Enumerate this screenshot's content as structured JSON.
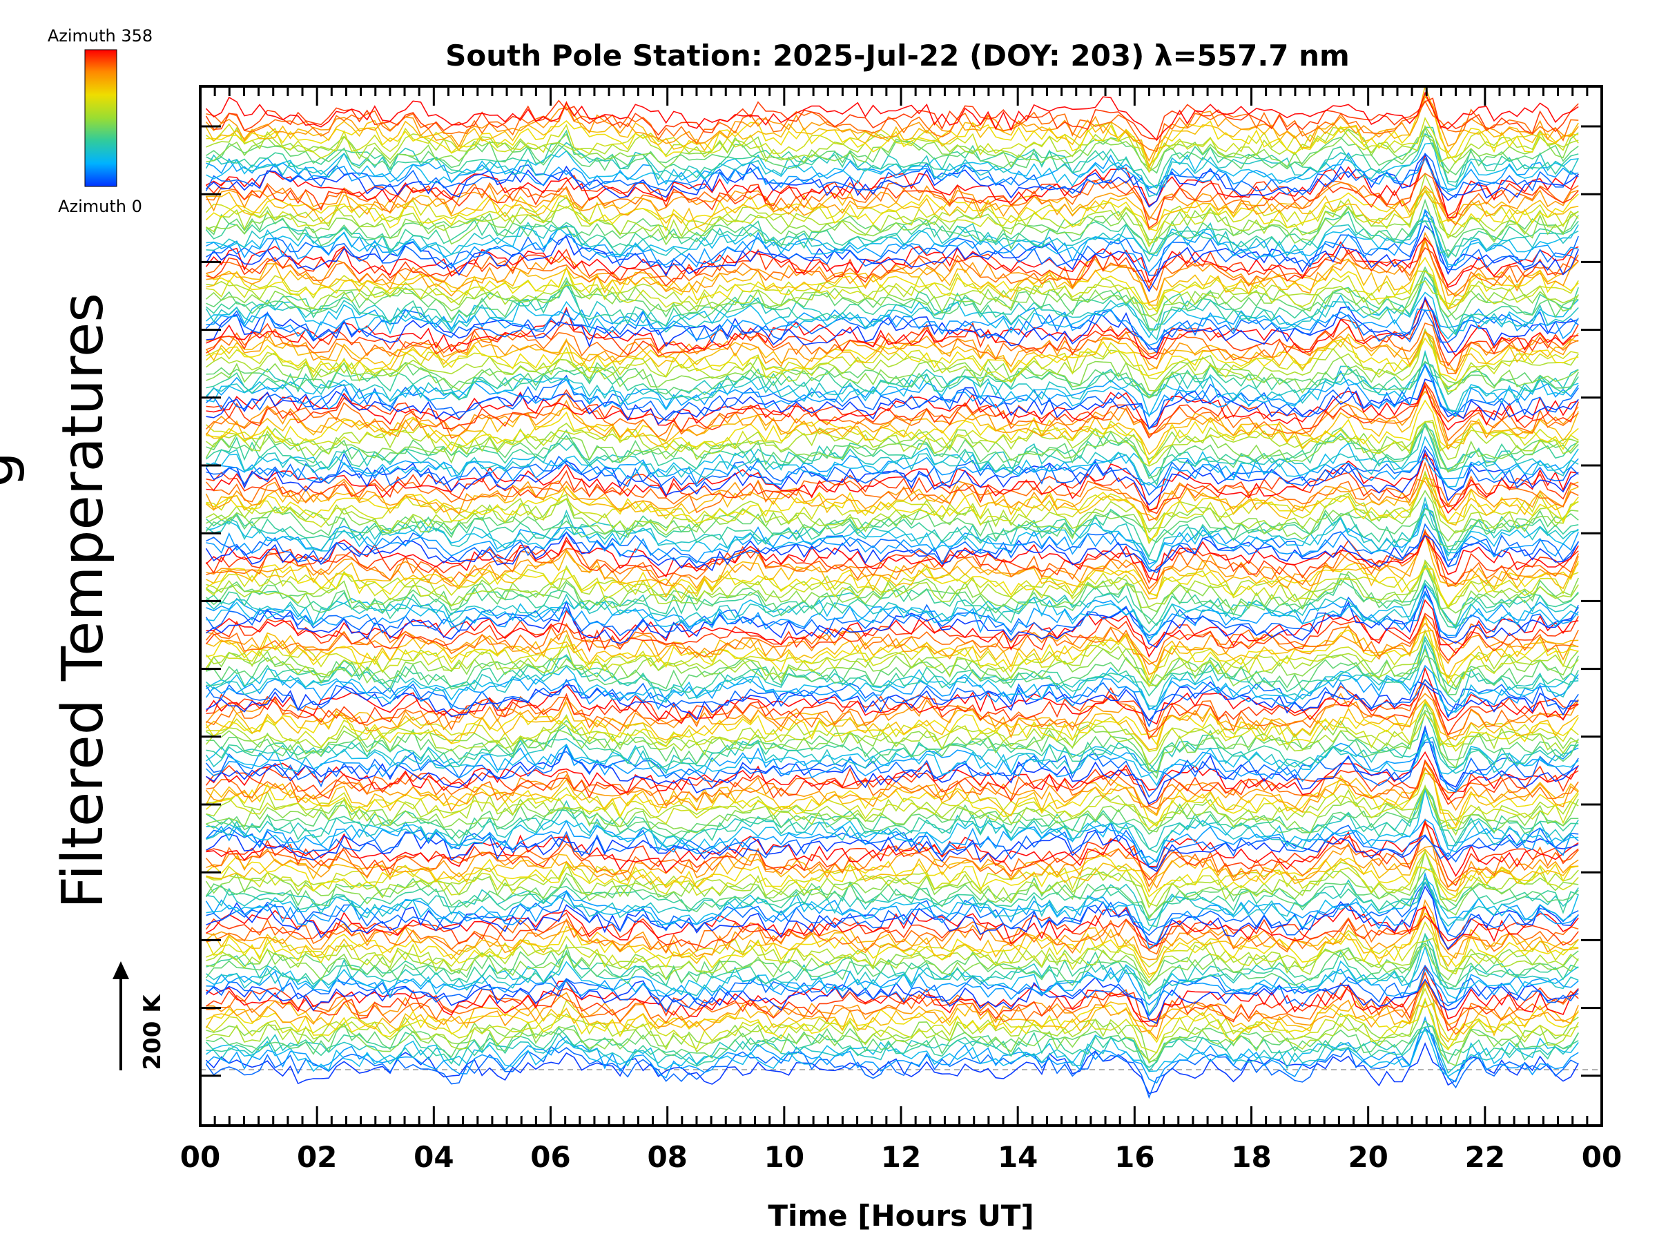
{
  "chart_data": {
    "type": "line",
    "title": "South Pole Station: 2025-Jul-22 (DOY: 203) λ=557.7 nm",
    "xlabel": "Time [Hours UT]",
    "ylabel": "Filtered Temperatures",
    "ylabel_partial": "g",
    "x_tick_labels": [
      "00",
      "02",
      "04",
      "06",
      "08",
      "10",
      "12",
      "14",
      "16",
      "18",
      "20",
      "22",
      "00"
    ],
    "xlim": [
      0,
      24
    ],
    "scale_bar_label": "200 K",
    "colorbar": {
      "top_label": "Azimuth 358",
      "bottom_label": "Azimuth 0",
      "stops": [
        "#0033ff",
        "#00b3ff",
        "#33cc99",
        "#99dd33",
        "#eedd00",
        "#ff8800",
        "#ff0000"
      ]
    },
    "series_groups": 13,
    "traces_per_group": 16,
    "spikes": [
      {
        "time": 6.3,
        "amplitude": 0.6
      },
      {
        "time": 15.2,
        "amplitude": 0.35
      },
      {
        "time": 16.3,
        "amplitude": -0.5
      },
      {
        "time": 19.6,
        "amplitude": 0.3
      },
      {
        "time": 21.0,
        "amplitude": 1.2
      },
      {
        "time": 21.5,
        "amplitude": -0.4
      }
    ]
  }
}
